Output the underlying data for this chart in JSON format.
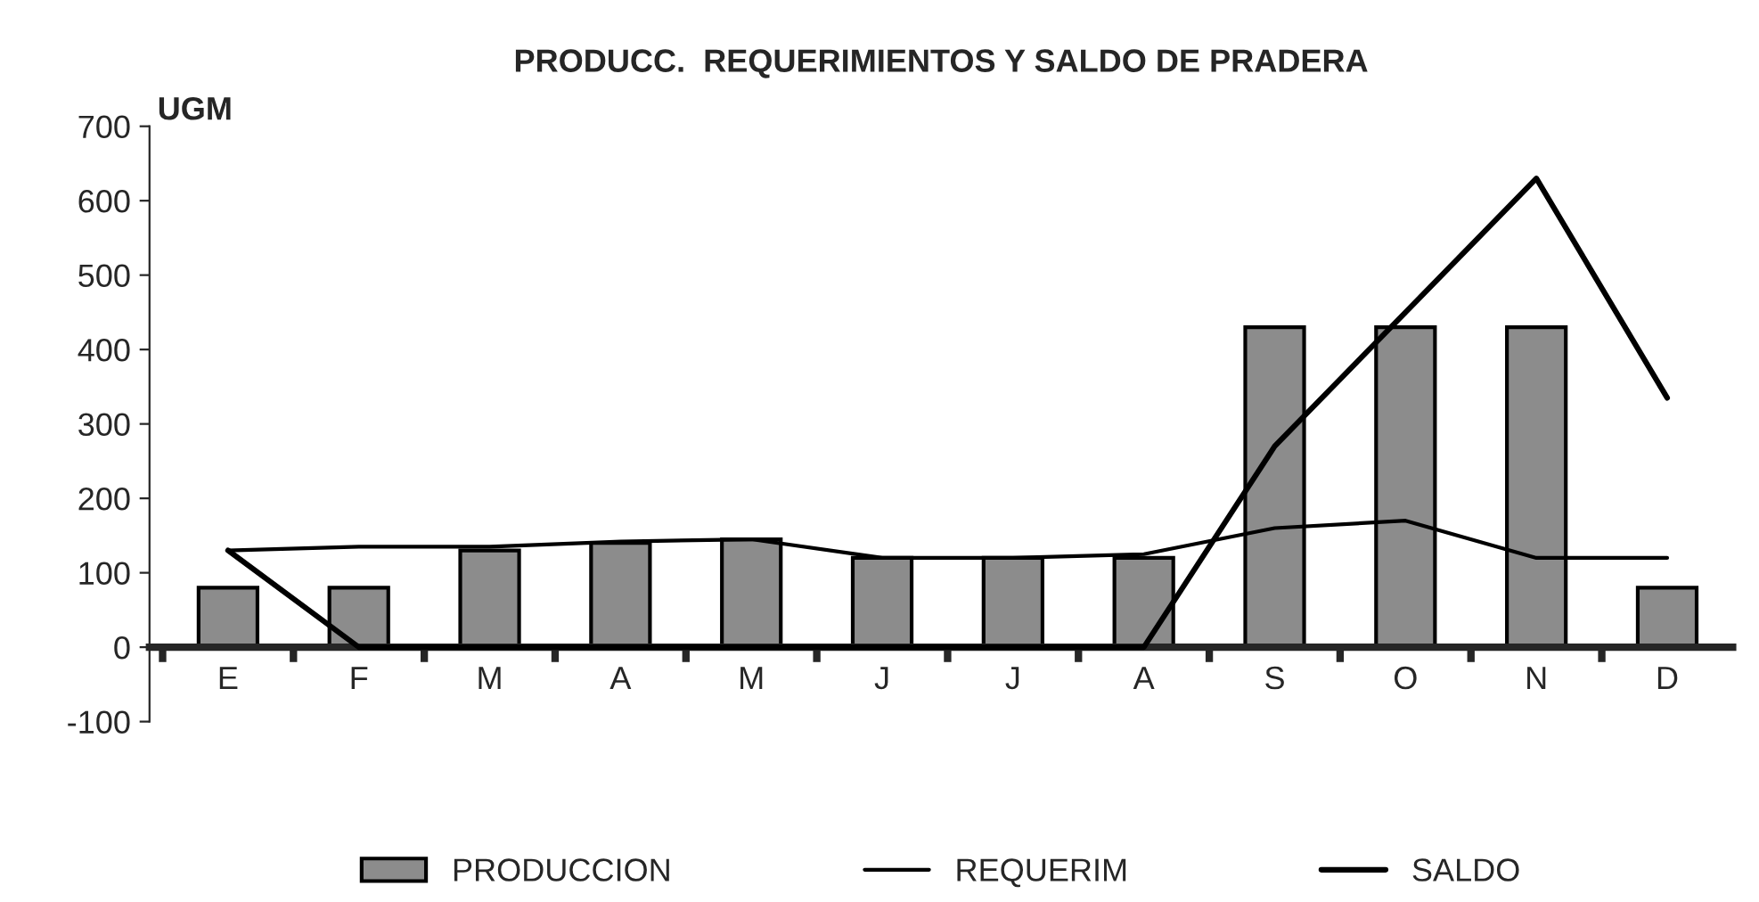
{
  "chart_data": {
    "type": "bar",
    "title": "PRODUCC.  REQUERIMIENTOS Y SALDO DE PRADERA",
    "ylabel": "UGM",
    "categories": [
      "E",
      "F",
      "M",
      "A",
      "M",
      "J",
      "J",
      "A",
      "S",
      "O",
      "N",
      "D"
    ],
    "series": [
      {
        "name": "PRODUCCION",
        "color": "#8c8c8c",
        "values": [
          80,
          80,
          130,
          140,
          145,
          120,
          120,
          120,
          430,
          430,
          430,
          80
        ]
      },
      {
        "name": "REQUERIM",
        "type": "line",
        "color": "#000000",
        "values": [
          130,
          135,
          135,
          142,
          145,
          120,
          120,
          125,
          160,
          170,
          120,
          120
        ]
      },
      {
        "name": "SALDO",
        "type": "line",
        "color": "#000000",
        "values": [
          130,
          0,
          0,
          0,
          0,
          0,
          0,
          0,
          270,
          450,
          630,
          335
        ]
      }
    ],
    "ylim": [
      -100,
      700
    ],
    "yticks": [
      -100,
      0,
      100,
      200,
      300,
      400,
      500,
      600,
      700
    ],
    "grid": false,
    "legend": "bottom"
  }
}
